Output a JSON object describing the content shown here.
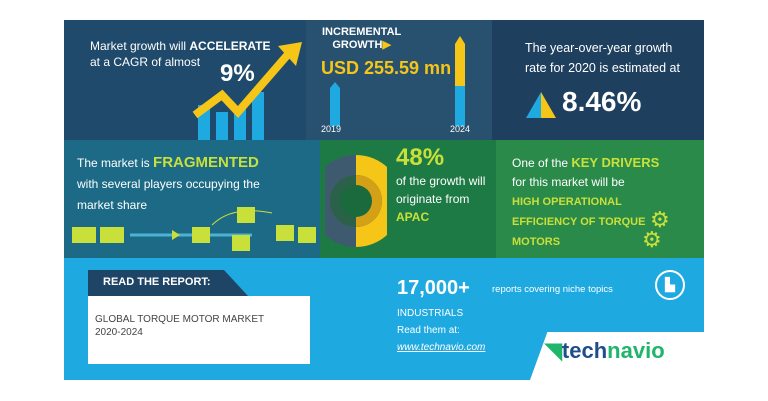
{
  "cagr": {
    "line1": "Market growth will ",
    "line1_bold": "ACCELERATE",
    "line2": "at a CAGR of almost",
    "value": "9%"
  },
  "incremental": {
    "label1": "INCREMENTAL",
    "label2": "GROWTH",
    "value": "USD 255.59 mn",
    "year_start": "2019",
    "year_end": "2024"
  },
  "yoy": {
    "line1": "The year-over-year growth",
    "line2": "rate for 2020 is estimated at",
    "value": "8.46%"
  },
  "fragmented": {
    "line1": "The market is ",
    "line1_bold": "FRAGMENTED",
    "line2": "with several players occupying the",
    "line3": "market share"
  },
  "region": {
    "value": "48%",
    "line1": "of the growth will",
    "line2": "originate from",
    "region": "APAC",
    "share": 0.48
  },
  "drivers": {
    "line1": "One of the ",
    "line1_bold": "KEY DRIVERS",
    "line2": "for this market will be",
    "driver1": "HIGH OPERATIONAL",
    "driver2": "EFFICIENCY OF TORQUE",
    "driver3": "MOTORS"
  },
  "report": {
    "header": "READ THE REPORT:",
    "title": "GLOBAL TORQUE MOTOR MARKET",
    "years": "2020-2024"
  },
  "footer": {
    "count": "17,000+",
    "count_text": "reports covering niche topics",
    "category": "INDUSTRIALS",
    "read": "Read them at:",
    "url": "www.technavio.com",
    "logo_a": "tech",
    "logo_b": "navio"
  },
  "colors": {
    "navy": "#1f4566",
    "teal": "#1c6a85",
    "green": "#1f7c45",
    "blue": "#1fa9e1",
    "yellow": "#f5c518",
    "lime": "#c9e03a"
  }
}
